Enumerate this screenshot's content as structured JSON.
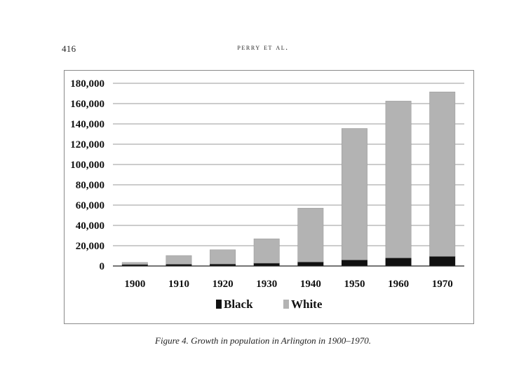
{
  "header": {
    "page_number": "416",
    "running_head": "PERRY ET AL."
  },
  "figure": {
    "caption": "Figure 4. Growth in population in Arlington in 1900–1970."
  },
  "chart_data": {
    "type": "bar",
    "stacked": true,
    "title": "",
    "xlabel": "",
    "ylabel": "",
    "categories": [
      "1900",
      "1910",
      "1920",
      "1930",
      "1940",
      "1950",
      "1960",
      "1970"
    ],
    "series": [
      {
        "name": "Black",
        "color": "#111111",
        "values": [
          1500,
          1800,
          2000,
          2800,
          4000,
          6000,
          8000,
          9500
        ]
      },
      {
        "name": "White",
        "color": "#b3b3b3",
        "values": [
          2000,
          8500,
          14000,
          24000,
          53000,
          129500,
          154500,
          162000
        ]
      }
    ],
    "ylim": [
      0,
      180000
    ],
    "yticks": [
      0,
      20000,
      40000,
      60000,
      80000,
      100000,
      120000,
      140000,
      160000,
      180000
    ],
    "ytick_labels": [
      "0",
      "20,000",
      "40,000",
      "60,000",
      "80,000",
      "100,000",
      "120,000",
      "140,000",
      "160,000",
      "180,000"
    ],
    "grid": true,
    "legend": [
      "Black",
      "White"
    ],
    "legend_position": "bottom-center"
  }
}
